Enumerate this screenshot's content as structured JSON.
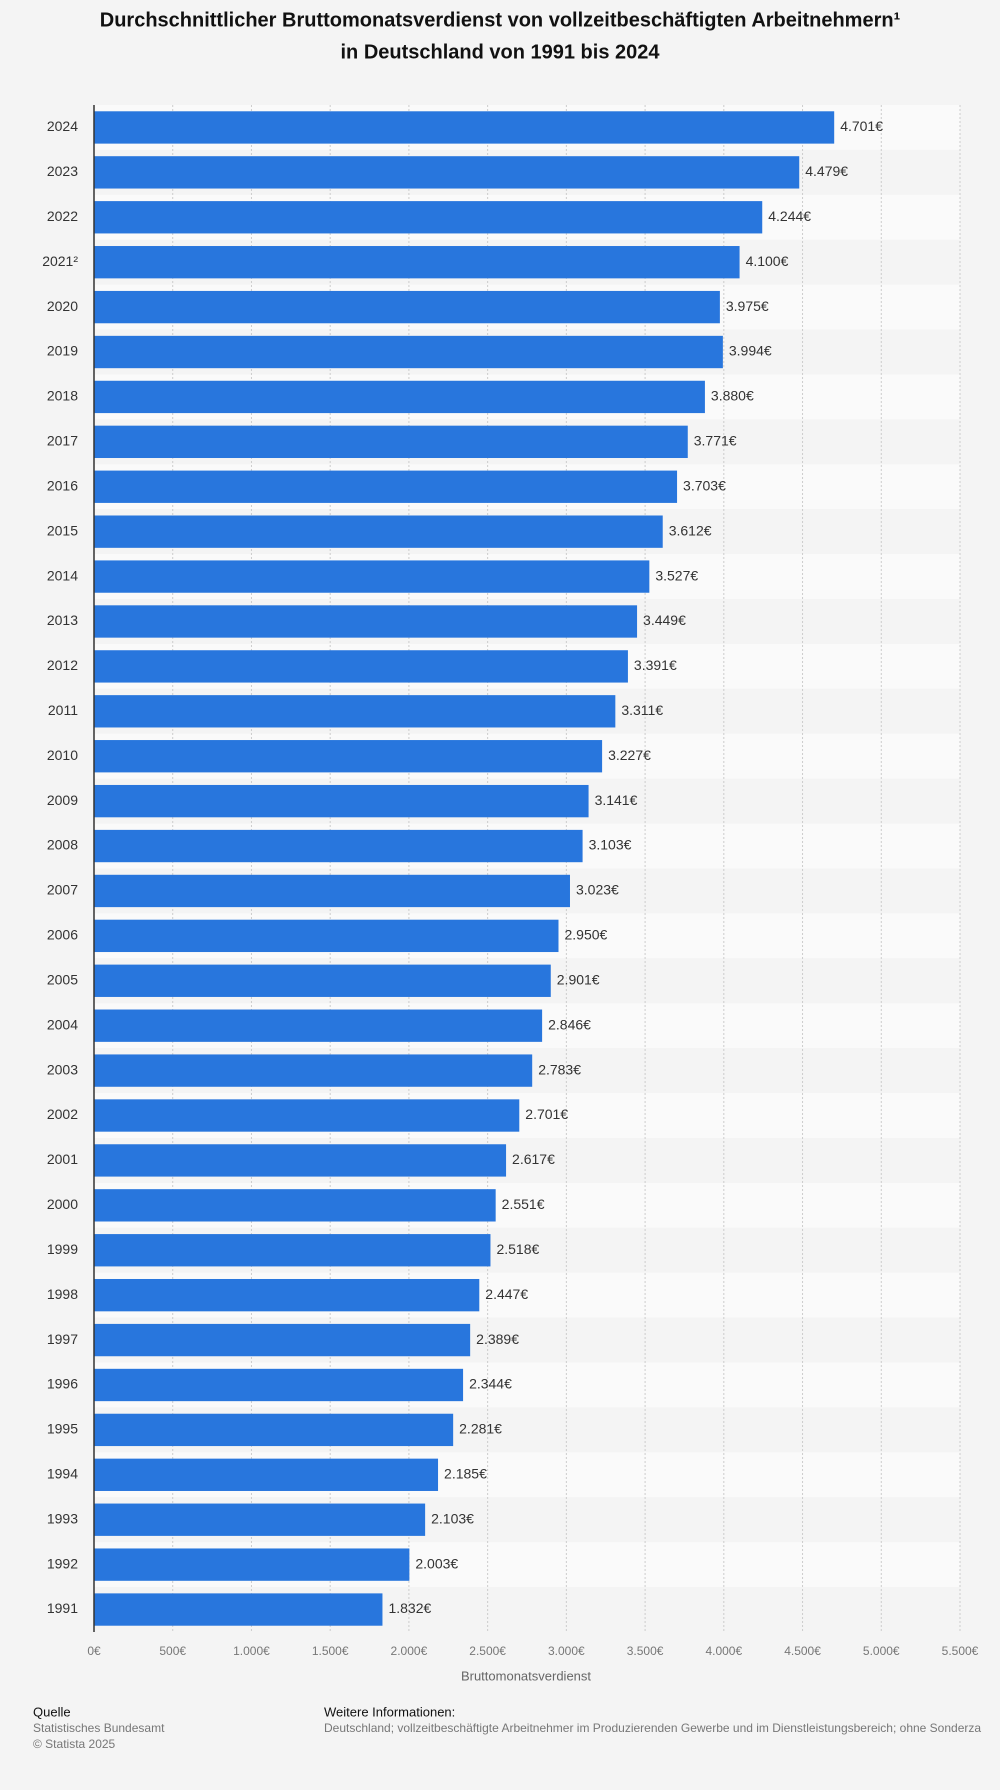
{
  "chart_data": {
    "type": "bar",
    "orientation": "horizontal",
    "title": [
      "Durchschnittlicher Bruttomonatsverdienst von vollzeitbeschäftigten Arbeitnehmern¹",
      "in Deutschland von 1991 bis 2024"
    ],
    "x_label": "Bruttomonatsverdienst",
    "categories": [
      "2024",
      "2023",
      "2022",
      "2021²",
      "2020",
      "2019",
      "2018",
      "2017",
      "2016",
      "2015",
      "2014",
      "2013",
      "2012",
      "2011",
      "2010",
      "2009",
      "2008",
      "2007",
      "2006",
      "2005",
      "2004",
      "2003",
      "2002",
      "2001",
      "2000",
      "1999",
      "1998",
      "1997",
      "1996",
      "1995",
      "1994",
      "1993",
      "1992",
      "1991"
    ],
    "values": [
      4701,
      4479,
      4244,
      4100,
      3975,
      3994,
      3880,
      3771,
      3703,
      3612,
      3527,
      3449,
      3391,
      3311,
      3227,
      3141,
      3103,
      3023,
      2950,
      2901,
      2846,
      2783,
      2701,
      2617,
      2551,
      2518,
      2447,
      2389,
      2344,
      2281,
      2185,
      2103,
      2003,
      1832
    ],
    "value_labels": [
      "4.701€",
      "4.479€",
      "4.244€",
      "4.100€",
      "3.975€",
      "3.994€",
      "3.880€",
      "3.771€",
      "3.703€",
      "3.612€",
      "3.527€",
      "3.449€",
      "3.391€",
      "3.311€",
      "3.227€",
      "3.141€",
      "3.103€",
      "3.023€",
      "2.950€",
      "2.901€",
      "2.846€",
      "2.783€",
      "2.701€",
      "2.617€",
      "2.551€",
      "2.518€",
      "2.447€",
      "2.389€",
      "2.344€",
      "2.281€",
      "2.185€",
      "2.103€",
      "2.003€",
      "1.832€"
    ],
    "color": "#2876dd",
    "xlim": [
      0,
      5500
    ],
    "xticks": [
      {
        "value": 0,
        "label": "0€"
      },
      {
        "value": 500,
        "label": "500€"
      },
      {
        "value": 1000,
        "label": "1.000€"
      },
      {
        "value": 1500,
        "label": "1.500€"
      },
      {
        "value": 2000,
        "label": "2.000€"
      },
      {
        "value": 2500,
        "label": "2.500€"
      },
      {
        "value": 3000,
        "label": "3.000€"
      },
      {
        "value": 3500,
        "label": "3.500€"
      },
      {
        "value": 4000,
        "label": "4.000€"
      },
      {
        "value": 4500,
        "label": "4.500€"
      },
      {
        "value": 5000,
        "label": "5.000€"
      },
      {
        "value": 5500,
        "label": "5.500€"
      }
    ],
    "grid": true
  },
  "footer": {
    "source_heading": "Quelle",
    "source": "Statistisches Bundesamt",
    "copyright": "© Statista 2025",
    "info_heading": "Weitere Informationen:",
    "info": "Deutschland; vollzeitbeschäftigte Arbeitnehmer im Produzierenden Gewerbe und im Dienstleistungsbereich; ohne Sonderza"
  }
}
